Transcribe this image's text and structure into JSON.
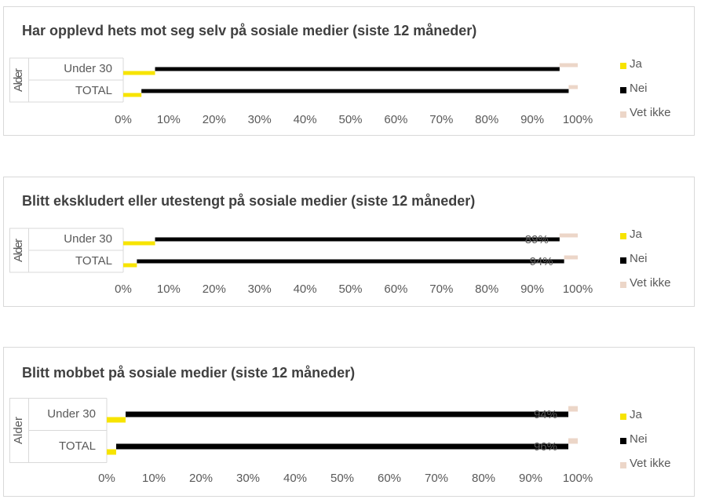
{
  "chart_data": [
    {
      "type": "bar",
      "orientation": "horizontal",
      "stacked": true,
      "title": "Har opplevd hets mot seg selv på sosiale medier (siste 12 måneder)",
      "group_label": "Alder",
      "categories": [
        "Under 30",
        "TOTAL"
      ],
      "series": [
        {
          "name": "Ja",
          "color": "#f7e400",
          "values": [
            7,
            4
          ]
        },
        {
          "name": "Nei",
          "color": "#000000",
          "values": [
            89,
            94
          ]
        },
        {
          "name": "Vet ikke",
          "color": "#ecd6c8",
          "values": [
            4,
            2
          ]
        }
      ],
      "xlim": [
        0,
        100
      ],
      "xticks": [
        {
          "value": 0,
          "label": "0%"
        },
        {
          "value": 10,
          "label": "10%"
        },
        {
          "value": 20,
          "label": "20%"
        },
        {
          "value": 30,
          "label": "30%"
        },
        {
          "value": 40,
          "label": "40%"
        },
        {
          "value": 50,
          "label": "50%"
        },
        {
          "value": 60,
          "label": "60%"
        },
        {
          "value": 70,
          "label": "70%"
        },
        {
          "value": 80,
          "label": "80%"
        },
        {
          "value": 90,
          "label": "90%"
        },
        {
          "value": 100,
          "label": "100%"
        }
      ],
      "legend": "right"
    },
    {
      "type": "bar",
      "orientation": "horizontal",
      "stacked": true,
      "title": "Blitt ekskludert eller utestengt på sosiale medier (siste 12 måneder)",
      "group_label": "Alder",
      "categories": [
        "Under 30",
        "TOTAL"
      ],
      "series": [
        {
          "name": "Ja",
          "color": "#f7e400",
          "values": [
            7,
            3
          ]
        },
        {
          "name": "Nei",
          "color": "#000000",
          "values": [
            89,
            94
          ],
          "value_labels": [
            "89%",
            "94%"
          ]
        },
        {
          "name": "Vet ikke",
          "color": "#ecd6c8",
          "values": [
            4,
            3
          ]
        }
      ],
      "xlim": [
        0,
        100
      ],
      "xticks": [
        {
          "value": 0,
          "label": "0%"
        },
        {
          "value": 10,
          "label": "10%"
        },
        {
          "value": 20,
          "label": "20%"
        },
        {
          "value": 30,
          "label": "30%"
        },
        {
          "value": 40,
          "label": "40%"
        },
        {
          "value": 50,
          "label": "50%"
        },
        {
          "value": 60,
          "label": "60%"
        },
        {
          "value": 70,
          "label": "70%"
        },
        {
          "value": 80,
          "label": "80%"
        },
        {
          "value": 90,
          "label": "90%"
        },
        {
          "value": 100,
          "label": "100%"
        }
      ],
      "legend": "right"
    },
    {
      "type": "bar",
      "orientation": "horizontal",
      "stacked": true,
      "title": "Blitt mobbet på sosiale medier (siste 12 måneder)",
      "group_label": "Alder",
      "categories": [
        "Under 30",
        "TOTAL"
      ],
      "series": [
        {
          "name": "Ja",
          "color": "#f7e400",
          "values": [
            4,
            2
          ]
        },
        {
          "name": "Nei",
          "color": "#000000",
          "values": [
            94,
            96
          ],
          "value_labels": [
            "94%",
            "96%"
          ]
        },
        {
          "name": "Vet ikke",
          "color": "#ecd6c8",
          "values": [
            2,
            2
          ]
        }
      ],
      "xlim": [
        0,
        100
      ],
      "xticks": [
        {
          "value": 0,
          "label": "0%"
        },
        {
          "value": 10,
          "label": "10%"
        },
        {
          "value": 20,
          "label": "20%"
        },
        {
          "value": 30,
          "label": "30%"
        },
        {
          "value": 40,
          "label": "40%"
        },
        {
          "value": 50,
          "label": "50%"
        },
        {
          "value": 60,
          "label": "60%"
        },
        {
          "value": 70,
          "label": "70%"
        },
        {
          "value": 80,
          "label": "80%"
        },
        {
          "value": 90,
          "label": "90%"
        },
        {
          "value": 100,
          "label": "100%"
        }
      ],
      "legend": "right"
    }
  ]
}
